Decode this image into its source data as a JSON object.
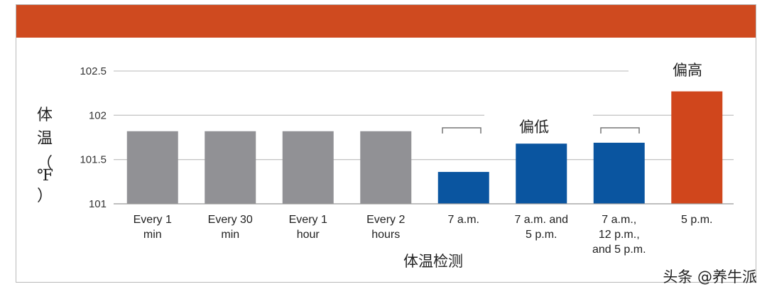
{
  "chart_data": {
    "type": "bar",
    "ylabel_chars": [
      "体",
      "温",
      "（",
      "℉",
      "）"
    ],
    "xlabel": "体温检测",
    "categories": [
      [
        "Every 1",
        "min"
      ],
      [
        "Every 30",
        "min"
      ],
      [
        "Every 1",
        "hour"
      ],
      [
        "Every 2",
        "hours"
      ],
      [
        "7 a.m."
      ],
      [
        "7 a.m. and",
        "5 p.m."
      ],
      [
        "7 a.m.,",
        "12 p.m.,",
        "and 5 p.m."
      ],
      [
        "5 p.m."
      ]
    ],
    "values": [
      101.82,
      101.82,
      101.82,
      101.82,
      101.36,
      101.68,
      101.69,
      102.27
    ],
    "bar_colors": [
      "#919195",
      "#919195",
      "#919195",
      "#919195",
      "#0a55a0",
      "#0a55a0",
      "#0a55a0",
      "#d0461c"
    ],
    "ylim": [
      101,
      102.5
    ],
    "yticks": [
      "101",
      "101.5",
      "102",
      "102.5"
    ],
    "grid": true,
    "annotations": {
      "low": "偏低",
      "high": "偏高"
    }
  },
  "colors": {
    "top_bar": "#cf4a1f",
    "gray": "#919195",
    "blue": "#0a55a0",
    "orange": "#d0461c"
  },
  "watermark": "头条 @养牛派"
}
